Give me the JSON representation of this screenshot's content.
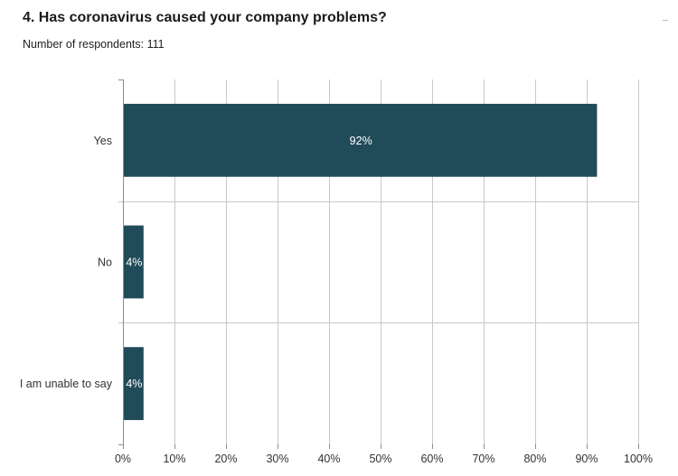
{
  "title": "4. Has coronavirus caused your company problems?",
  "subtitle": "Number of respondents: 111",
  "chart_data": {
    "type": "bar",
    "orientation": "horizontal",
    "title": "4. Has coronavirus caused your company problems?",
    "subtitle": "Number of respondents: 111",
    "categories": [
      "Yes",
      "No",
      "I am unable to say"
    ],
    "values": [
      92,
      4,
      4
    ],
    "data_labels": [
      "92%",
      "4%",
      "4%"
    ],
    "xlabel": "",
    "ylabel": "",
    "xlim": [
      0,
      100
    ],
    "x_ticks": [
      0,
      10,
      20,
      30,
      40,
      50,
      60,
      70,
      80,
      90,
      100
    ],
    "x_tick_labels": [
      "0%",
      "10%",
      "20%",
      "30%",
      "40%",
      "50%",
      "60%",
      "70%",
      "80%",
      "90%",
      "100%"
    ],
    "grid": true,
    "legend": "none",
    "colors": {
      "bar": "#224b5a",
      "grid": "#c8c8c8",
      "axis": "#8c8c8c",
      "label": "#ffffff"
    }
  }
}
